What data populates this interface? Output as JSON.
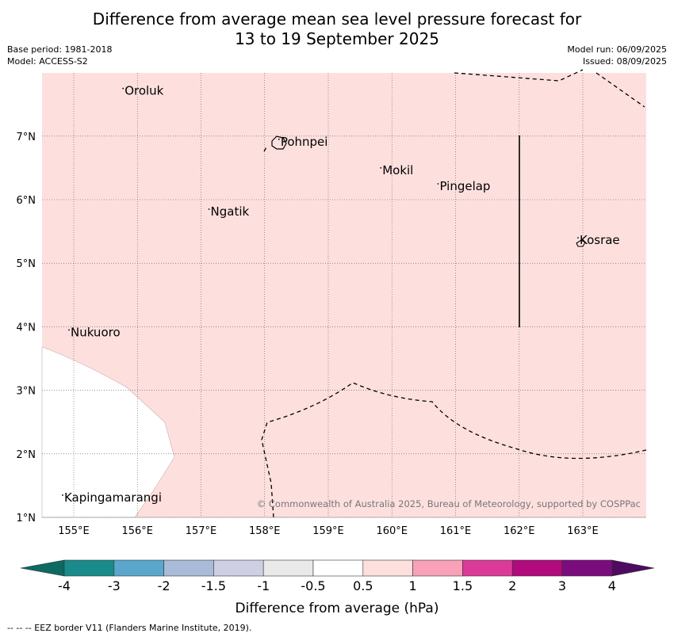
{
  "title_line1": "Difference from average mean sea level pressure forecast for",
  "title_line2": "13 to 19 September 2025",
  "base_period": "Base period: 1981-2018",
  "model": "Model: ACCESS-S2",
  "model_run": "Model run: 06/09/2025",
  "issued": "Issued: 08/09/2025",
  "lon_labels": [
    "155°E",
    "156°E",
    "157°E",
    "158°E",
    "159°E",
    "160°E",
    "161°E",
    "162°E",
    "163°E"
  ],
  "lat_labels": [
    "1°N",
    "2°N",
    "3°N",
    "4°N",
    "5°N",
    "6°N",
    "7°N"
  ],
  "places": [
    {
      "name": "Oroluk",
      "lon": 155.8,
      "lat": 7.65
    },
    {
      "name": "Pohnpei",
      "lon": 158.25,
      "lat": 6.85
    },
    {
      "name": "Mokil",
      "lon": 159.85,
      "lat": 6.4
    },
    {
      "name": "Pingelap",
      "lon": 160.75,
      "lat": 6.15
    },
    {
      "name": "Ngatik",
      "lon": 157.15,
      "lat": 5.75
    },
    {
      "name": "Kosrae",
      "lon": 162.95,
      "lat": 5.3
    },
    {
      "name": "Nukuoro",
      "lon": 154.95,
      "lat": 3.85
    },
    {
      "name": "Kapingamarangi",
      "lon": 154.85,
      "lat": 1.25
    }
  ],
  "copyright": "© Commonwealth of Australia 2025, Bureau of Meteorology, supported by COSPPac",
  "legend": {
    "colors": [
      "#1a8b8b",
      "#5aa7cb",
      "#a9bbd9",
      "#cfcfe4",
      "#e9e9e9",
      "#ffffff",
      "#fde0de",
      "#f8a1b8",
      "#db3a98",
      "#b10a7d",
      "#7b0c7d"
    ],
    "low_color": "#0c6a62",
    "high_color": "#4e0b60",
    "tick_labels": [
      "-4",
      "-3",
      "-2",
      "-1.5",
      "-1",
      "-0.5",
      "0.5",
      "1",
      "1.5",
      "2",
      "3",
      "4"
    ],
    "label": "Difference from average (hPa)"
  },
  "footer": "-- -- -- EEZ border V11 (Flanders Marine Institute, 2019)."
}
